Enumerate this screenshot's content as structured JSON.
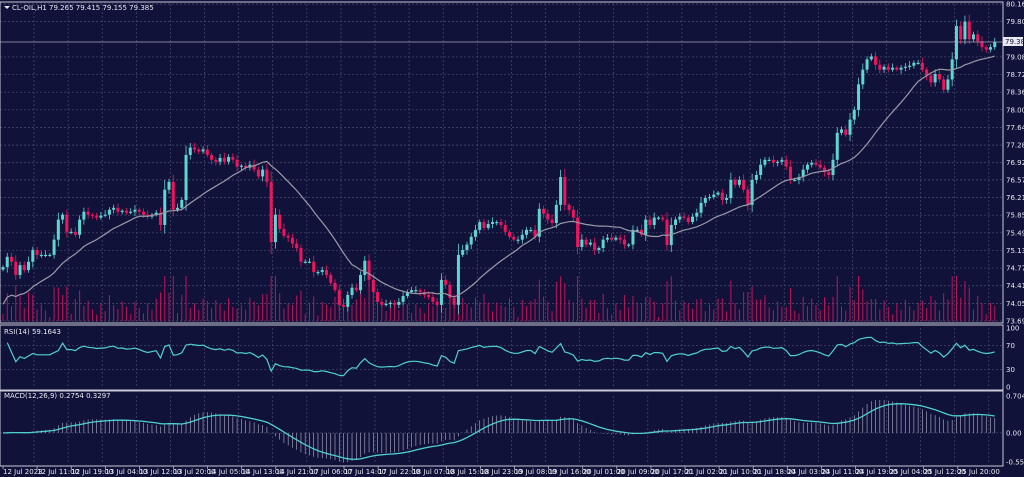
{
  "header": {
    "symbol": "CL-OIL,H1",
    "ohlc": "79.265 79.415 79.155 79.385",
    "menu_icon": "triangle-down-icon"
  },
  "colors": {
    "background": "#10123a",
    "grid": "#4b4e72",
    "up": "#5fd6d2",
    "down": "#f0145f",
    "ma": "#9a9aa6",
    "volume": "#c0125a",
    "indicator": "#4fd0d0",
    "axis": "#c8c8d4"
  },
  "chart_data": [
    {
      "type": "candlestick",
      "title": "CL-OIL,H1 79.265 79.415 79.155 79.385",
      "ylim": [
        73.69,
        80.16
      ],
      "y_ticks": [
        "80.160",
        "79.800",
        "79.080",
        "78.720",
        "78.360",
        "78.000",
        "77.640",
        "77.280",
        "76.920",
        "76.570",
        "76.210",
        "75.850",
        "75.490",
        "75.130",
        "74.770",
        "74.410",
        "74.050",
        "73.690"
      ],
      "current_price": "79.385",
      "x_ticks": [
        "12 Jul 2023",
        "12 Jul 11:00",
        "12 Jul 19:00",
        "13 Jul 04:00",
        "13 Jul 12:00",
        "13 Jul 20:00",
        "14 Jul 05:00",
        "14 Jul 13:00",
        "14 Jul 21:00",
        "17 Jul 06:00",
        "17 Jul 14:00",
        "17 Jul 22:00",
        "18 Jul 07:00",
        "18 Jul 15:00",
        "18 Jul 23:00",
        "19 Jul 08:00",
        "19 Jul 16:00",
        "20 Jul 01:00",
        "20 Jul 09:00",
        "20 Jul 17:00",
        "21 Jul 02:00",
        "21 Jul 10:00",
        "21 Jul 18:00",
        "24 Jul 03:00",
        "24 Jul 11:00",
        "24 Jul 19:00",
        "25 Jul 04:00",
        "25 Jul 12:00",
        "25 Jul 20:00"
      ],
      "grid": true,
      "overlays": [
        "moving average",
        "volume"
      ],
      "close": [
        74.79,
        75.0,
        74.9,
        74.63,
        74.83,
        74.73,
        74.9,
        75.14,
        75.04,
        75.04,
        75.04,
        75.04,
        75.35,
        75.76,
        75.86,
        75.51,
        75.51,
        75.45,
        75.76,
        75.92,
        75.86,
        75.84,
        75.8,
        75.84,
        75.86,
        75.96,
        76.0,
        75.92,
        75.94,
        75.9,
        75.92,
        75.96,
        75.92,
        75.86,
        75.82,
        75.86,
        75.9,
        75.65,
        76.37,
        76.53,
        75.96,
        76.0,
        76.16,
        77.08,
        77.23,
        77.19,
        77.15,
        77.19,
        77.08,
        76.98,
        76.94,
        77.02,
        76.94,
        77.04,
        76.98,
        76.84,
        76.86,
        76.82,
        76.88,
        76.78,
        76.64,
        76.78,
        76.53,
        75.3,
        75.86,
        75.57,
        75.43,
        75.39,
        75.27,
        75.18,
        74.9,
        74.9,
        74.9,
        74.69,
        74.69,
        74.73,
        74.63,
        74.47,
        74.32,
        74.02,
        73.98,
        74.22,
        74.37,
        74.32,
        74.63,
        74.92,
        74.53,
        74.28,
        74.08,
        74.02,
        74.04,
        74.06,
        74.02,
        74.08,
        74.2,
        74.28,
        74.32,
        74.32,
        74.28,
        74.22,
        74.18,
        74.08,
        74.02,
        74.53,
        74.43,
        74.16,
        74.02,
        75.04,
        75.14,
        75.25,
        75.41,
        75.55,
        75.71,
        75.59,
        75.67,
        75.71,
        75.71,
        75.65,
        75.51,
        75.41,
        75.35,
        75.35,
        75.45,
        75.55,
        75.55,
        75.41,
        75.98,
        75.88,
        75.76,
        75.69,
        76.06,
        76.63,
        76.06,
        75.96,
        75.8,
        75.2,
        75.35,
        75.25,
        75.29,
        75.14,
        75.18,
        75.35,
        75.39,
        75.35,
        75.39,
        75.35,
        75.25,
        75.25,
        75.55,
        75.55,
        75.45,
        75.76,
        75.65,
        75.8,
        75.8,
        75.76,
        75.24,
        75.65,
        75.76,
        75.82,
        75.8,
        75.71,
        75.82,
        75.9,
        76.1,
        76.2,
        76.22,
        76.27,
        76.31,
        76.16,
        76.2,
        76.57,
        76.47,
        76.57,
        76.37,
        76.06,
        76.57,
        76.67,
        76.88,
        76.98,
        76.98,
        76.92,
        76.94,
        76.98,
        76.84,
        76.57,
        76.57,
        76.63,
        76.78,
        76.88,
        76.92,
        76.88,
        76.82,
        76.73,
        76.67,
        76.98,
        77.53,
        77.6,
        77.49,
        77.8,
        78.0,
        78.52,
        78.82,
        79.03,
        79.09,
        78.92,
        78.82,
        78.88,
        78.82,
        78.86,
        78.82,
        78.86,
        78.88,
        78.9,
        78.96,
        78.96,
        78.82,
        78.7,
        78.56,
        78.73,
        78.62,
        78.41,
        78.62,
        79.03,
        79.71,
        79.44,
        79.8,
        79.44,
        79.54,
        79.4,
        79.28,
        79.23,
        79.28,
        79.385
      ]
    },
    {
      "type": "line",
      "title": "RSI(14) 59.1643",
      "ylim": [
        0,
        100
      ],
      "y_ticks": [
        "100",
        "70",
        "30",
        "0"
      ]
    },
    {
      "type": "bar+line",
      "title": "MACD(12,26,9) 0.2754 0.3297",
      "ylim": [
        -0.5539,
        0.7043
      ],
      "y_ticks": [
        "0.7043",
        "0.00",
        "-0.5539"
      ]
    }
  ]
}
